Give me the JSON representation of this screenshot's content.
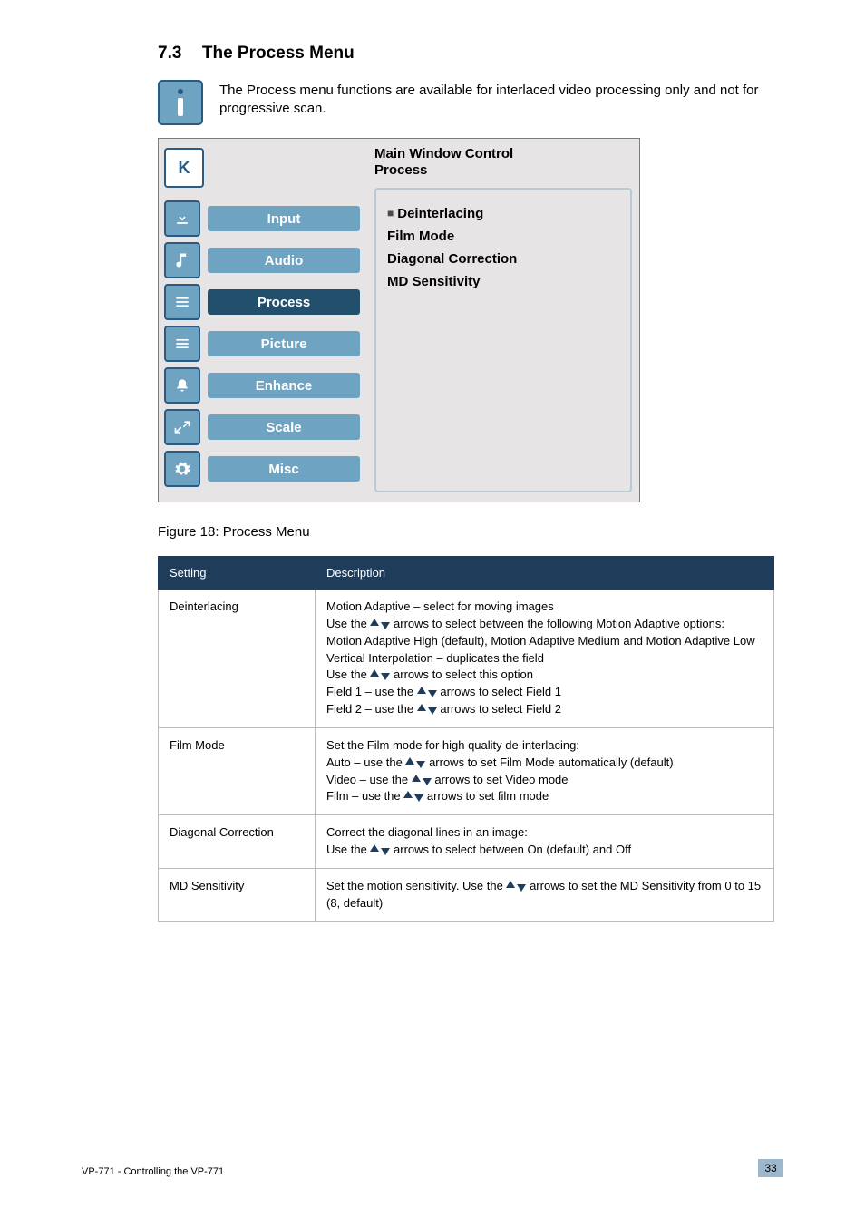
{
  "section": {
    "number": "7.3",
    "title": "The Process Menu"
  },
  "info_note": "The Process menu functions are available for interlaced video processing only and not for progressive scan.",
  "osd": {
    "logo_glyph": "K",
    "header_line1": "Main Window Control",
    "header_line2": "Process",
    "menu": [
      {
        "label": "Input",
        "icon": "download",
        "selected": false
      },
      {
        "label": "Audio",
        "icon": "note",
        "selected": false
      },
      {
        "label": "Process",
        "icon": "stack",
        "selected": true
      },
      {
        "label": "Picture",
        "icon": "stack",
        "selected": false
      },
      {
        "label": "Enhance",
        "icon": "bell",
        "selected": false
      },
      {
        "label": "Scale",
        "icon": "resize",
        "selected": false
      },
      {
        "label": "Misc",
        "icon": "gear",
        "selected": false
      }
    ],
    "panel": [
      {
        "text": "Deinterlacing",
        "selected": true
      },
      {
        "text": "Film Mode",
        "selected": false
      },
      {
        "text": "Diagonal Correction",
        "selected": false
      },
      {
        "text": "MD Sensitivity",
        "selected": false
      }
    ],
    "colors": {
      "bg": "#e6e4e4",
      "btn_norm": "#6ea3c2",
      "btn_sel": "#22506c",
      "border": "#2a5b82",
      "panel_border": "#b7c9d4"
    }
  },
  "figure_caption": "Figure 18: Process Menu",
  "table": {
    "headers": [
      "Setting",
      "Description"
    ],
    "rows": [
      {
        "setting": "Deinterlacing",
        "desc": "Motion Adaptive – select for moving images\nUse the ▲▼ arrows to select between the following Motion Adaptive options: Motion Adaptive High (default), Motion Adaptive Medium and Motion Adaptive Low\nVertical Interpolation – duplicates the field\nUse the ▲▼ arrows to select this option\nField 1 – use the ▲▼ arrows to select Field 1\nField 2 – use the ▲▼ arrows to select Field 2"
      },
      {
        "setting": "Film Mode",
        "desc": "Set the Film mode for high quality de-interlacing:\nAuto – use the ▲▼ arrows to set Film Mode automatically (default)\nVideo – use the ▲▼ arrows to set Video mode\nFilm – use the ▲▼ arrows to set film mode"
      },
      {
        "setting": "Diagonal Correction",
        "desc": "Correct the diagonal lines in an image:\nUse the ▲▼ arrows to select between On (default) and Off"
      },
      {
        "setting": "MD Sensitivity",
        "desc": "Set the motion sensitivity. Use the ▲▼ arrows to set the MD Sensitivity from 0 to 15 (8, default)"
      }
    ]
  },
  "footer": {
    "left": "VP-771 - Controlling the VP-771",
    "page": "33"
  }
}
